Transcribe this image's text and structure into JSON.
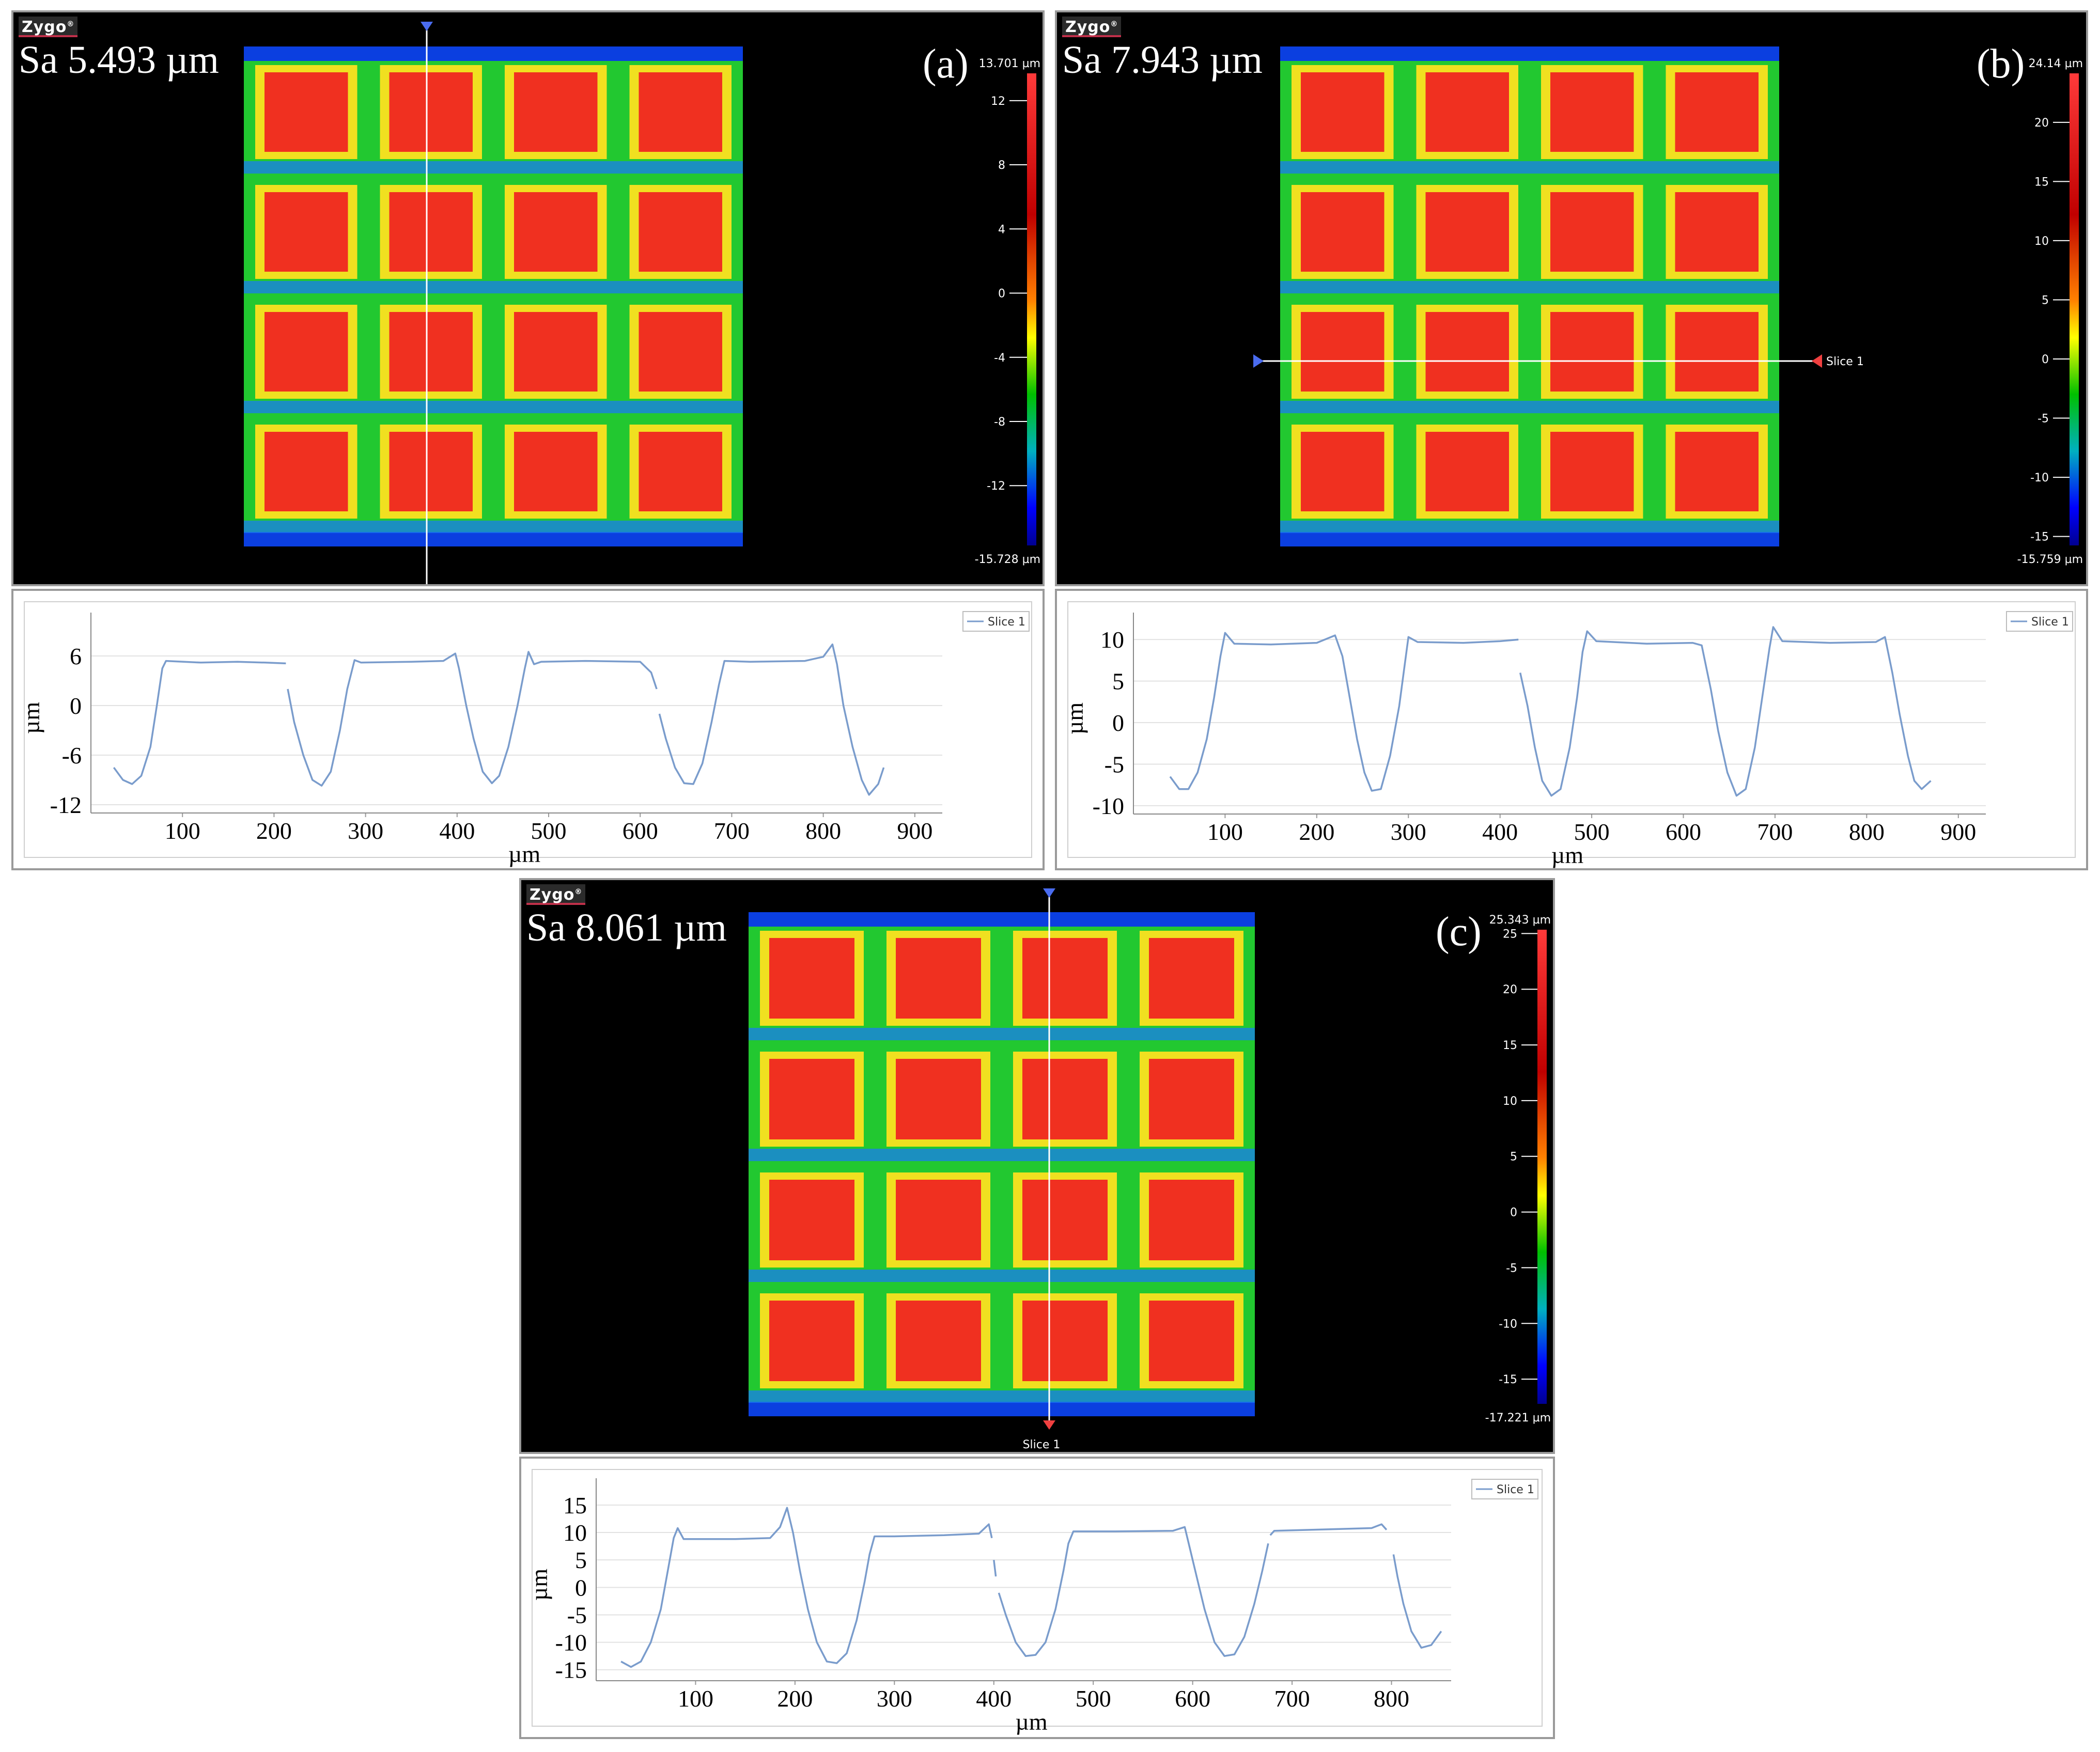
{
  "panels": [
    {
      "label": "(a)",
      "logo": "Zygo",
      "sa": "Sa 5.493 µm",
      "scale": {
        "max_label": "13.701 µm",
        "min_label": "-15.728 µm",
        "ticks": [
          12,
          8,
          4,
          0,
          -4,
          -8,
          -12
        ],
        "range": [
          -15.728,
          13.701
        ]
      },
      "slice": {
        "orientation": "vertical",
        "label": ""
      },
      "legend": "Slice 1",
      "chart": {
        "ylabel": "µm",
        "xlabel": "µm",
        "yticks": [
          6,
          0,
          -6,
          -12
        ],
        "xticks": [
          100,
          200,
          300,
          400,
          500,
          600,
          700,
          800,
          900
        ]
      }
    },
    {
      "label": "(b)",
      "logo": "Zygo",
      "sa": "Sa 7.943 µm",
      "scale": {
        "max_label": "24.14 µm",
        "min_label": "-15.759 µm",
        "ticks": [
          20,
          15,
          10,
          5,
          0,
          -5,
          -10,
          -15
        ],
        "range": [
          -15.759,
          24.14
        ]
      },
      "slice": {
        "orientation": "horizontal",
        "label": "Slice 1"
      },
      "legend": "Slice 1",
      "chart": {
        "ylabel": "µm",
        "xlabel": "µm",
        "yticks": [
          10,
          5,
          0,
          -5,
          -10
        ],
        "xticks": [
          100,
          200,
          300,
          400,
          500,
          600,
          700,
          800,
          900
        ]
      }
    },
    {
      "label": "(c)",
      "logo": "Zygo",
      "sa": "Sa 8.061 µm",
      "scale": {
        "max_label": "25.343 µm",
        "min_label": "-17.221 µm",
        "ticks": [
          25,
          20,
          15,
          10,
          5,
          0,
          -5,
          -10,
          -15
        ],
        "range": [
          -17.221,
          25.343
        ]
      },
      "slice": {
        "orientation": "vertical",
        "label": "Slice 1"
      },
      "legend": "Slice 1",
      "chart": {
        "ylabel": "µm",
        "xlabel": "µm",
        "yticks": [
          15,
          10,
          5,
          0,
          -5,
          -10,
          -15
        ],
        "xticks": [
          100,
          200,
          300,
          400,
          500,
          600,
          700,
          800
        ]
      }
    }
  ],
  "chart_data": [
    {
      "type": "line",
      "panel": "(a)",
      "xlabel": "µm",
      "ylabel": "µm",
      "xlim": [
        0,
        930
      ],
      "ylim": [
        -13,
        10
      ],
      "series": [
        {
          "name": "Slice 1",
          "color": "#7a9ccc",
          "segments": [
            [
              [
                25,
                -7.5
              ],
              [
                35,
                -9
              ],
              [
                45,
                -9.5
              ],
              [
                55,
                -8.5
              ],
              [
                65,
                -5
              ],
              [
                72,
                0
              ],
              [
                78,
                4.5
              ],
              [
                82,
                5.4
              ],
              [
                120,
                5.2
              ],
              [
                160,
                5.3
              ],
              [
                190,
                5.2
              ],
              [
                213,
                5.1
              ]
            ],
            [
              [
                215,
                2
              ],
              [
                222,
                -2
              ],
              [
                232,
                -6
              ],
              [
                242,
                -9
              ],
              [
                252,
                -9.7
              ],
              [
                262,
                -8
              ],
              [
                272,
                -3
              ],
              [
                280,
                2
              ],
              [
                288,
                5.5
              ],
              [
                295,
                5.2
              ],
              [
                350,
                5.3
              ],
              [
                385,
                5.4
              ],
              [
                398,
                6.3
              ],
              [
                402,
                4.5
              ],
              [
                410,
                0
              ],
              [
                418,
                -4
              ],
              [
                428,
                -8
              ],
              [
                438,
                -9.4
              ],
              [
                446,
                -8.5
              ],
              [
                456,
                -5
              ],
              [
                466,
                0
              ],
              [
                474,
                4.5
              ],
              [
                478,
                6.5
              ],
              [
                484,
                5
              ],
              [
                492,
                5.3
              ],
              [
                540,
                5.4
              ],
              [
                600,
                5.3
              ],
              [
                612,
                4
              ],
              [
                618,
                2
              ]
            ],
            [
              [
                621,
                -1
              ],
              [
                628,
                -4
              ],
              [
                638,
                -7.5
              ],
              [
                648,
                -9.4
              ],
              [
                658,
                -9.5
              ],
              [
                668,
                -7
              ],
              [
                678,
                -2
              ],
              [
                686,
                2.5
              ],
              [
                692,
                5.4
              ],
              [
                720,
                5.3
              ],
              [
                780,
                5.4
              ],
              [
                800,
                5.9
              ],
              [
                810,
                7.4
              ],
              [
                815,
                5
              ],
              [
                822,
                0
              ],
              [
                832,
                -5
              ],
              [
                842,
                -9
              ],
              [
                850,
                -10.8
              ],
              [
                860,
                -9.5
              ],
              [
                866,
                -7.5
              ]
            ]
          ]
        }
      ]
    },
    {
      "type": "line",
      "panel": "(b)",
      "xlabel": "µm",
      "ylabel": "µm",
      "xlim": [
        0,
        930
      ],
      "ylim": [
        -11,
        12
      ],
      "series": [
        {
          "name": "Slice 1",
          "color": "#7a9ccc",
          "segments": [
            [
              [
                40,
                -6.5
              ],
              [
                50,
                -8
              ],
              [
                60,
                -8
              ],
              [
                70,
                -6
              ],
              [
                80,
                -2
              ],
              [
                88,
                3
              ],
              [
                95,
                8
              ],
              [
                100,
                10.8
              ],
              [
                110,
                9.5
              ],
              [
                150,
                9.4
              ],
              [
                200,
                9.6
              ],
              [
                220,
                10.5
              ],
              [
                228,
                8
              ],
              [
                236,
                3
              ],
              [
                244,
                -2
              ],
              [
                252,
                -6
              ],
              [
                260,
                -8.2
              ],
              [
                270,
                -8
              ],
              [
                280,
                -4
              ],
              [
                290,
                2
              ],
              [
                296,
                7
              ],
              [
                300,
                10.3
              ],
              [
                310,
                9.7
              ],
              [
                360,
                9.6
              ],
              [
                400,
                9.8
              ],
              [
                420,
                10
              ]
            ],
            [
              [
                422,
                6
              ],
              [
                430,
                2
              ],
              [
                438,
                -3
              ],
              [
                446,
                -7
              ],
              [
                456,
                -8.8
              ],
              [
                466,
                -8
              ],
              [
                476,
                -3
              ],
              [
                484,
                3
              ],
              [
                490,
                8.5
              ],
              [
                495,
                11
              ],
              [
                505,
                9.8
              ],
              [
                560,
                9.5
              ],
              [
                610,
                9.6
              ],
              [
                620,
                9.3
              ],
              [
                630,
                4
              ],
              [
                638,
                -1
              ],
              [
                648,
                -6
              ],
              [
                658,
                -8.8
              ],
              [
                668,
                -8
              ],
              [
                678,
                -3
              ],
              [
                686,
                3
              ],
              [
                694,
                9
              ],
              [
                698,
                11.5
              ],
              [
                708,
                9.8
              ],
              [
                760,
                9.6
              ],
              [
                810,
                9.7
              ],
              [
                820,
                10.3
              ],
              [
                828,
                6
              ],
              [
                836,
                1
              ],
              [
                845,
                -4
              ],
              [
                852,
                -7
              ],
              [
                860,
                -8
              ],
              [
                870,
                -7
              ]
            ]
          ]
        }
      ]
    },
    {
      "type": "line",
      "panel": "(c)",
      "xlabel": "µm",
      "ylabel": "µm",
      "xlim": [
        0,
        860
      ],
      "ylim": [
        -17,
        18
      ],
      "series": [
        {
          "name": "Slice 1",
          "color": "#7a9ccc",
          "segments": [
            [
              [
                25,
                -13.5
              ],
              [
                35,
                -14.5
              ],
              [
                45,
                -13.5
              ],
              [
                55,
                -10
              ],
              [
                65,
                -4
              ],
              [
                72,
                3
              ],
              [
                78,
                9
              ],
              [
                82,
                10.8
              ],
              [
                88,
                8.8
              ],
              [
                140,
                8.8
              ],
              [
                175,
                9
              ],
              [
                185,
                11
              ],
              [
                192,
                14.5
              ],
              [
                198,
                10
              ],
              [
                205,
                3
              ],
              [
                213,
                -4
              ],
              [
                222,
                -10
              ],
              [
                232,
                -13.5
              ],
              [
                242,
                -13.8
              ],
              [
                252,
                -12
              ],
              [
                262,
                -6
              ],
              [
                270,
                1
              ],
              [
                275,
                6
              ],
              [
                280,
                9.3
              ],
              [
                300,
                9.3
              ],
              [
                350,
                9.5
              ],
              [
                385,
                9.8
              ],
              [
                395,
                11.5
              ],
              [
                398,
                9
              ]
            ],
            [
              [
                400,
                5
              ],
              [
                402,
                2
              ]
            ],
            [
              [
                405,
                -1
              ],
              [
                412,
                -5
              ],
              [
                422,
                -10
              ],
              [
                432,
                -12.5
              ],
              [
                442,
                -12.3
              ],
              [
                452,
                -10
              ],
              [
                462,
                -4
              ],
              [
                470,
                3
              ],
              [
                475,
                8
              ],
              [
                480,
                10.2
              ],
              [
                520,
                10.2
              ],
              [
                580,
                10.3
              ],
              [
                592,
                11
              ],
              [
                596,
                8
              ],
              [
                604,
                2
              ],
              [
                612,
                -4
              ],
              [
                622,
                -10
              ],
              [
                632,
                -12.5
              ],
              [
                642,
                -12.2
              ],
              [
                652,
                -9
              ],
              [
                662,
                -3
              ],
              [
                670,
                3
              ],
              [
                676,
                8
              ]
            ],
            [
              [
                678,
                9.5
              ],
              [
                682,
                10.3
              ],
              [
                720,
                10.5
              ],
              [
                780,
                10.8
              ],
              [
                790,
                11.5
              ],
              [
                795,
                10.5
              ]
            ],
            [
              [
                802,
                6
              ],
              [
                806,
                2
              ],
              [
                812,
                -3
              ],
              [
                820,
                -8
              ],
              [
                830,
                -11
              ],
              [
                840,
                -10.5
              ],
              [
                850,
                -8
              ]
            ]
          ]
        }
      ]
    }
  ]
}
